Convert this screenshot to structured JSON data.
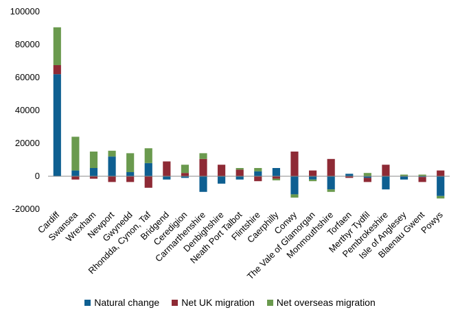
{
  "chart_data": {
    "type": "bar",
    "stacked": true,
    "categories": [
      "Cardiff",
      "Swansea",
      "Wrexham",
      "Newport",
      "Gwynedd",
      "Rhondda, Cynon, Taf",
      "Bridgend",
      "Ceredigion",
      "Carmarthenshire",
      "Denbighshire",
      "Neath Port Talbot",
      "Flintshire",
      "Caerphilly",
      "Conwy",
      "The Vale of Glamorgan",
      "Monmouthshire",
      "Torfaen",
      "Merthyr Tydfil",
      "Pembrokeshire",
      "Isle of Anglesey",
      "Blaenau Gwent",
      "Powys"
    ],
    "series": [
      {
        "name": "Natural change",
        "color": "#0e5f91",
        "values": [
          62000,
          3500,
          5000,
          12000,
          2500,
          8000,
          -2000,
          -1000,
          -9500,
          -4500,
          -2000,
          3000,
          5000,
          -11000,
          -2000,
          -8000,
          1500,
          -1000,
          -8000,
          -2000,
          -500,
          -12000
        ]
      },
      {
        "name": "Net UK migration",
        "color": "#8e2a35",
        "values": [
          5500,
          -2000,
          -1500,
          -3500,
          -3500,
          -7000,
          9000,
          2000,
          10500,
          7000,
          4000,
          -3000,
          -1500,
          15000,
          3500,
          10500,
          -1000,
          -2500,
          7000,
          0,
          -3000,
          3500
        ]
      },
      {
        "name": "Net overseas migration",
        "color": "#6a9a4e",
        "values": [
          23000,
          20500,
          10000,
          3500,
          11500,
          9000,
          0,
          5000,
          3500,
          0,
          1000,
          2000,
          -1000,
          -2000,
          -1000,
          -1500,
          0,
          2000,
          0,
          1000,
          1000,
          -1500
        ]
      }
    ],
    "ylim": [
      -20000,
      100000
    ],
    "yticks": [
      "-20000",
      "0",
      "20000",
      "40000",
      "60000",
      "80000",
      "100000"
    ],
    "legend_position": "bottom",
    "grid": false
  }
}
